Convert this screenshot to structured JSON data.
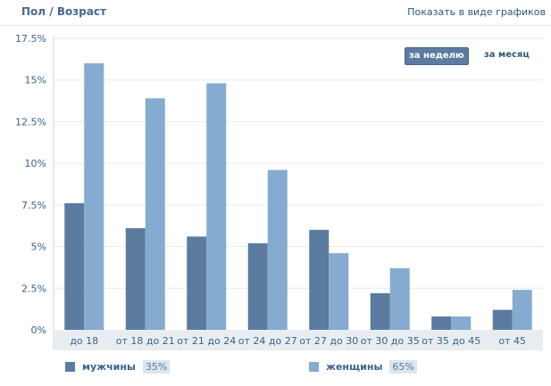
{
  "header": {
    "title": "Пол / Возраст",
    "toggle_link": "Показать в виде графиков"
  },
  "period_tabs": [
    {
      "label": "за неделю",
      "active": true
    },
    {
      "label": "за месяц",
      "active": false
    }
  ],
  "legend": [
    {
      "label": "мужчины",
      "percent": "35%",
      "color": "#5b7b9f"
    },
    {
      "label": "женщины",
      "percent": "65%",
      "color": "#85abd0"
    }
  ],
  "colors": {
    "men": "#5b7b9f",
    "women": "#85abd0",
    "axis_band": "#e9edf2",
    "grid": "#e5eaf0",
    "axis_text": "#36638e"
  },
  "chart_data": {
    "type": "bar",
    "categories": [
      "до 18",
      "от 18 до 21",
      "от 21 до 24",
      "от 24 до 27",
      "от 27 до 30",
      "от 30 до 35",
      "от 35 до 45",
      "от 45"
    ],
    "series": [
      {
        "name": "мужчины",
        "values": [
          7.6,
          6.1,
          5.6,
          5.2,
          6.0,
          2.2,
          0.8,
          1.2
        ]
      },
      {
        "name": "женщины",
        "values": [
          16.0,
          13.9,
          14.8,
          9.6,
          4.6,
          3.7,
          0.8,
          2.4
        ]
      }
    ],
    "y_ticks": [
      "0%",
      "2.5%",
      "5%",
      "7.5%",
      "10%",
      "12.5%",
      "15%",
      "17.5%"
    ],
    "ylim": [
      0,
      17.5
    ],
    "grid": true,
    "legend_position": "bottom"
  }
}
